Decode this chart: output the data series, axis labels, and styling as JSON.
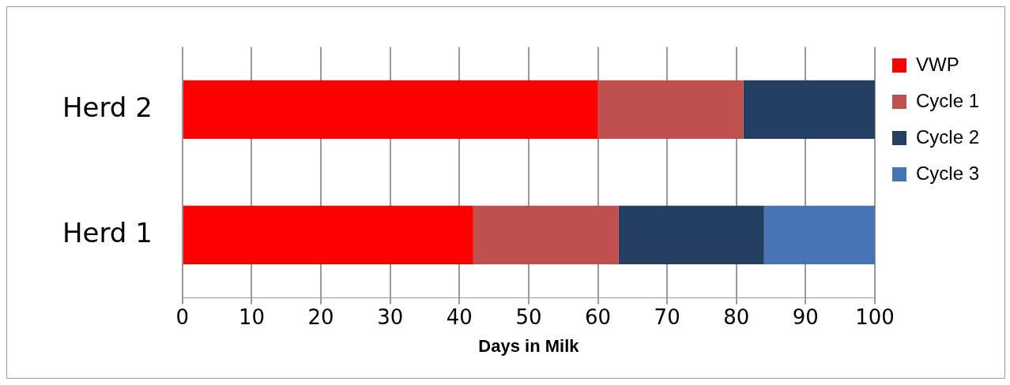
{
  "chart_data": {
    "type": "bar",
    "orientation": "horizontal",
    "stacked": true,
    "xlabel": "Days in Milk",
    "categories": [
      "Herd 2",
      "Herd 1"
    ],
    "series": [
      {
        "name": "VWP",
        "color": "#ff0000",
        "values": [
          60,
          42
        ]
      },
      {
        "name": "Cycle 1",
        "color": "#c0504d",
        "values": [
          21,
          21
        ]
      },
      {
        "name": "Cycle 2",
        "color": "#243f62",
        "values": [
          19,
          21
        ]
      },
      {
        "name": "Cycle 3",
        "color": "#4674b4",
        "values": [
          null,
          16
        ]
      }
    ],
    "xlim": [
      0,
      100
    ],
    "xticks": [
      0,
      10,
      20,
      30,
      40,
      50,
      60,
      70,
      80,
      90,
      100
    ],
    "grid": "x",
    "legend": "right"
  }
}
